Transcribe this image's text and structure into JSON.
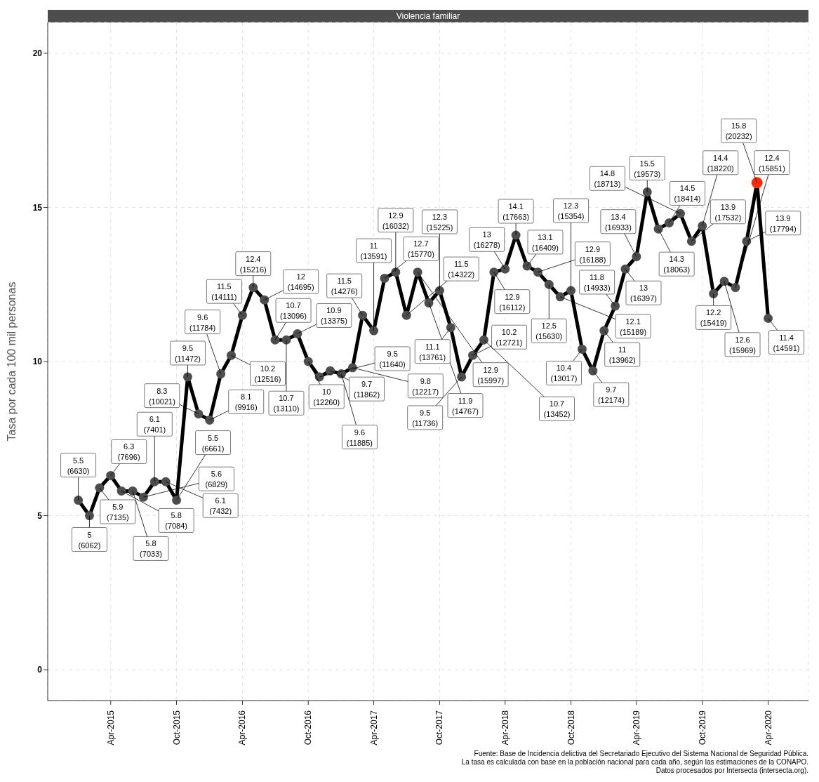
{
  "chart_data": {
    "type": "line",
    "title": "Violencia familiar",
    "ylabel": "Tasa por cada 100 mil personas",
    "x": [
      "2015-01",
      "2015-02",
      "2015-03",
      "2015-04",
      "2015-05",
      "2015-06",
      "2015-07",
      "2015-08",
      "2015-09",
      "2015-10",
      "2015-11",
      "2015-12",
      "2016-01",
      "2016-02",
      "2016-03",
      "2016-04",
      "2016-05",
      "2016-06",
      "2016-07",
      "2016-08",
      "2016-09",
      "2016-10",
      "2016-11",
      "2016-12",
      "2017-01",
      "2017-02",
      "2017-03",
      "2017-04",
      "2017-05",
      "2017-06",
      "2017-07",
      "2017-08",
      "2017-09",
      "2017-10",
      "2017-11",
      "2017-12",
      "2018-01",
      "2018-02",
      "2018-03",
      "2018-04",
      "2018-05",
      "2018-06",
      "2018-07",
      "2018-08",
      "2018-09",
      "2018-10",
      "2018-11",
      "2018-12",
      "2019-01",
      "2019-02",
      "2019-03",
      "2019-04",
      "2019-05",
      "2019-06",
      "2019-07",
      "2019-08",
      "2019-09",
      "2019-10",
      "2019-11",
      "2019-12",
      "2020-01",
      "2020-02",
      "2020-03",
      "2020-04"
    ],
    "series": [
      {
        "color": "#000000",
        "values": [
          5.5,
          5,
          5.9,
          6.3,
          5.8,
          5.8,
          5.6,
          6.1,
          6.1,
          5.5,
          9.5,
          8.3,
          8.1,
          9.6,
          10.2,
          11.5,
          12.4,
          12,
          10.7,
          10.7,
          10.9,
          10,
          9.5,
          9.7,
          9.6,
          9.8,
          11.5,
          11,
          12.7,
          12.9,
          11.5,
          12.9,
          11.9,
          12.3,
          11.1,
          9.5,
          10.2,
          10.7,
          12.9,
          13,
          14.1,
          13.1,
          12.9,
          12.5,
          12.1,
          12.3,
          10.4,
          9.7,
          11,
          11.8,
          13,
          13.4,
          15.5,
          14.3,
          14.5,
          14.8,
          13.9,
          14.4,
          12.2,
          12.6,
          12.4,
          13.9,
          15.8,
          11.4
        ],
        "value_labels": [
          "5.5\n(6630)",
          "5\n(6062)",
          "5.9\n(7135)",
          "6.3\n(7696)",
          "5.8\n(7084)",
          "5.8\n(7033)",
          "5.6\n(6829)",
          "6.1\n(7401)",
          "6.1\n(7432)",
          "5.5\n(6661)",
          "9.5\n(11472)",
          "8.3\n(10021)",
          "8.1\n(9916)",
          "9.6\n(11784)",
          "10.2\n(12516)",
          "11.5\n(14111)",
          "12.4\n(15216)",
          "12\n(14695)",
          "10.7\n(13096)",
          "10.7\n(13110)",
          "10.9\n(13375)",
          "10\n(12260)",
          "9.5\n(11640)",
          "9.7\n(11862)",
          "9.6\n(11885)",
          "9.8\n(12217)",
          "11.5\n(14276)",
          "11\n(13591)",
          "12.7\n(15770)",
          "12.9\n(16032)",
          "11.5\n(14322)",
          "12.9\n(15997)",
          "11.9\n(14767)",
          "12.3\n(15225)",
          "11.1\n(13761)",
          "9.5\n(11736)",
          "10.2\n(12721)",
          "10.7\n(13452)",
          "12.9\n(16112)",
          "13\n(16278)",
          "14.1\n(17663)",
          "13.1\n(16409)",
          "12.9\n(16188)",
          "12.5\n(15630)",
          "12.1\n(15189)",
          "12.3\n(15354)",
          "10.4\n(13017)",
          "9.7\n(12174)",
          "11\n(13962)",
          "11.8\n(14933)",
          "13\n(16397)",
          "13.4\n(16933)",
          "15.5\n(19573)",
          "14.3\n(18063)",
          "14.5\n(18414)",
          "14.8\n(18713)",
          "13.9\n(17532)",
          "14.4\n(18220)",
          "12.2\n(15419)",
          "12.6\n(15969)",
          "12.4\n(15851)",
          "13.9\n(17794)",
          "15.8\n(20232)",
          "11.4\n(14591)"
        ]
      },
      {
        "type": "scatter",
        "color": "#ff2a00",
        "x": [
          "2020-03"
        ],
        "values": [
          15.8
        ]
      }
    ],
    "xlim": [
      "2014-10-08",
      "2020-07-22"
    ],
    "xticks": [
      {
        "value": "2015-04",
        "label": "Apr-2015"
      },
      {
        "value": "2015-10",
        "label": "Oct-2015"
      },
      {
        "value": "2016-04",
        "label": "Apr-2016"
      },
      {
        "value": "2016-10",
        "label": "Oct-2016"
      },
      {
        "value": "2017-04",
        "label": "Apr-2017"
      },
      {
        "value": "2017-10",
        "label": "Oct-2017"
      },
      {
        "value": "2018-04",
        "label": "Apr-2018"
      },
      {
        "value": "2018-10",
        "label": "Oct-2018"
      },
      {
        "value": "2019-04",
        "label": "Apr-2019"
      },
      {
        "value": "2019-10",
        "label": "Oct-2019"
      },
      {
        "value": "2020-04",
        "label": "Apr-2020"
      }
    ],
    "ylim": [
      -1,
      21
    ],
    "yticks": [
      0,
      5,
      10,
      15,
      20
    ],
    "grid": true,
    "marker": "circle",
    "line_style": "solid",
    "annotations": [
      "Fuente: Base de Incidencia delictiva del Secretariado Ejecutivo del Sistema Nacional de Seguridad Pública.",
      "La tasa es calculada con base en la población nacional para cada año, según las estimaciones de la CONAPO.",
      "Datos procesados por Intersecta (intersecta.org)."
    ]
  }
}
